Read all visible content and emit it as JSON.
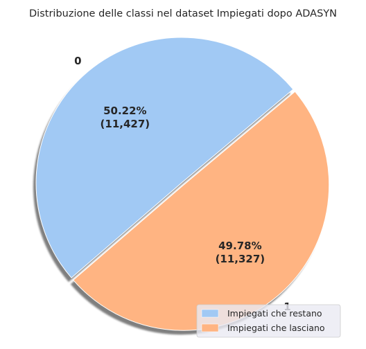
{
  "chart_data": {
    "type": "pie",
    "title": "Distribuzione delle classi nel dataset Impiegati dopo ADASYN",
    "slices": [
      {
        "label": "0",
        "value": 11427,
        "percent_label": "50.22%",
        "count_label": "(11,427)",
        "legend": "Impiegati che restano",
        "color": "#a1c9f4"
      },
      {
        "label": "1",
        "value": 11327,
        "percent_label": "49.78%",
        "count_label": "(11,327)",
        "legend": "Impiegati che lasciano",
        "color": "#ffb482"
      }
    ],
    "start_angle_deg": 40,
    "explode": [
      0,
      0.02
    ],
    "shadow": true,
    "legend_placement": "lower-right"
  }
}
